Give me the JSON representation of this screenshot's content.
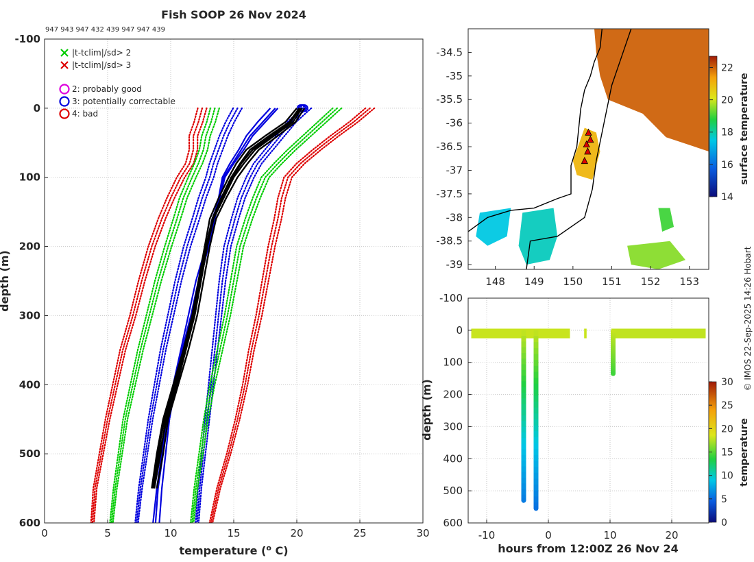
{
  "title": "Fish SOOP 26 Nov 2024",
  "subtitle": "947 943 947 432 439 947 947 439",
  "credit": "© IMOS 22-Sep-2025 14:26 Hobart",
  "colors": {
    "clim2": "#00cc00",
    "clim3": "#dd0000",
    "flag2": "#dd00dd",
    "flag3": "#0000dd",
    "flag4": "#dd0000",
    "profile": "#000000",
    "coast": "#000000"
  },
  "chart_data": [
    {
      "id": "profile",
      "type": "line",
      "xlabel": "temperature (",
      "xlabel_sup": "o",
      "xlabel_tail": " C)",
      "ylabel": "depth (m)",
      "xlim": [
        0,
        30
      ],
      "ylim": [
        -100,
        600
      ],
      "y_reversed": true,
      "xticks": [
        0,
        5,
        10,
        15,
        20,
        25,
        30
      ],
      "yticks": [
        -100,
        0,
        100,
        200,
        300,
        400,
        500,
        600
      ],
      "grid": true,
      "legend": {
        "position": "top-left",
        "entries": [
          {
            "marker": "x",
            "color": "#00cc00",
            "label": "|t-tclim|/sd> 2"
          },
          {
            "marker": "x",
            "color": "#dd0000",
            "label": "|t-tclim|/sd> 3"
          },
          {
            "marker": "o",
            "color": "#dd00dd",
            "label": "2: probably good"
          },
          {
            "marker": "o",
            "color": "#0000dd",
            "label": "3: potentially correctable"
          },
          {
            "marker": "o",
            "color": "#dd0000",
            "label": "4: bad"
          }
        ]
      },
      "depth": [
        0,
        20,
        40,
        60,
        80,
        100,
        130,
        160,
        200,
        250,
        300,
        350,
        400,
        450,
        500,
        550,
        600
      ],
      "climatology": [
        {
          "name": "mean-3sd",
          "color": "#dd0000",
          "style": "dotted",
          "values": [
            12.5,
            12.2,
            11.8,
            11.8,
            11.5,
            10.8,
            10.0,
            9.3,
            8.5,
            7.7,
            7.0,
            6.2,
            5.6,
            5.0,
            4.5,
            4.0,
            3.8
          ]
        },
        {
          "name": "mean-2sd",
          "color": "#00cc00",
          "style": "dotted",
          "values": [
            13.5,
            13.2,
            12.8,
            12.6,
            12.2,
            11.7,
            11.0,
            10.5,
            9.8,
            9.0,
            8.3,
            7.6,
            7.0,
            6.4,
            6.0,
            5.6,
            5.3
          ]
        },
        {
          "name": "mean-1sd",
          "color": "#0000dd",
          "style": "dotted",
          "values": [
            15.3,
            14.7,
            14.2,
            13.8,
            13.4,
            13.1,
            12.5,
            12.0,
            11.3,
            10.6,
            10.0,
            9.4,
            8.9,
            8.4,
            8.0,
            7.6,
            7.3
          ]
        },
        {
          "name": "mean+1sd",
          "color": "#0000dd",
          "style": "dotted",
          "values": [
            20.8,
            19.6,
            18.7,
            17.8,
            16.9,
            16.3,
            15.6,
            15.1,
            14.5,
            14.1,
            13.8,
            13.5,
            13.2,
            12.9,
            12.6,
            12.3,
            12.1
          ]
        },
        {
          "name": "mean+2sd",
          "color": "#00cc00",
          "style": "dotted",
          "values": [
            23.2,
            22.0,
            20.8,
            19.6,
            18.5,
            17.5,
            16.8,
            16.2,
            15.5,
            15.0,
            14.5,
            13.9,
            13.3,
            12.8,
            12.4,
            12.0,
            11.7
          ]
        },
        {
          "name": "mean+3sd",
          "color": "#dd0000",
          "style": "dotted",
          "values": [
            25.8,
            24.5,
            23.0,
            21.6,
            20.3,
            19.3,
            18.8,
            18.5,
            18.0,
            17.5,
            17.0,
            16.4,
            15.9,
            15.3,
            14.6,
            13.8,
            13.2
          ]
        }
      ],
      "flagged_profiles": {
        "color": "#0000dd",
        "depth": [
          0,
          20,
          40,
          60,
          80,
          100,
          130,
          160,
          200,
          250,
          300,
          350,
          400,
          450,
          500,
          550,
          600
        ],
        "values": [
          [
            18.5,
            17.5,
            16.5,
            15.8,
            15.0,
            14.3,
            13.9,
            13.5,
            13.0,
            12.3,
            11.7,
            11.0,
            10.4,
            9.9,
            9.6,
            9.3,
            9.1
          ],
          [
            17.9,
            16.9,
            16.0,
            15.4,
            14.7,
            14.1,
            13.8,
            13.4,
            12.9,
            12.2,
            11.6,
            10.9,
            10.3,
            9.8,
            9.4,
            9.0,
            8.8
          ],
          [
            18.3,
            17.3,
            16.3,
            15.6,
            14.9,
            14.2,
            13.9,
            13.3,
            12.8,
            12.0,
            11.4,
            10.8,
            10.2,
            9.7,
            9.3,
            8.9,
            8.6
          ]
        ],
        "surface_markers": [
          20.3,
          20.4,
          20.6,
          20.5
        ]
      },
      "good_profiles": {
        "color": "#000000",
        "depth": [
          0,
          20,
          40,
          60,
          80,
          100,
          130,
          160,
          200,
          250,
          300,
          350,
          400,
          450,
          500,
          550
        ],
        "values": [
          [
            20.4,
            19.7,
            18.2,
            16.7,
            15.8,
            15.0,
            14.2,
            13.4,
            12.9,
            12.4,
            11.9,
            11.2,
            10.4,
            9.6,
            9.2,
            8.7
          ],
          [
            20.2,
            19.4,
            17.8,
            16.3,
            15.5,
            14.8,
            14.0,
            13.3,
            12.8,
            12.3,
            11.8,
            11.1,
            10.3,
            9.5,
            9.0,
            8.6
          ],
          [
            20.6,
            19.9,
            18.5,
            17.0,
            16.1,
            15.3,
            14.4,
            13.6,
            13.1,
            12.6,
            12.1,
            11.4,
            10.6,
            9.8,
            9.4,
            8.9
          ],
          [
            20.0,
            19.1,
            17.5,
            16.0,
            15.2,
            14.6,
            13.8,
            13.1,
            12.7,
            12.2,
            11.7,
            11.0,
            10.2,
            9.4,
            8.9,
            8.5
          ],
          [
            20.3,
            19.5,
            18.0,
            16.5,
            15.6,
            14.9,
            14.1,
            13.4,
            12.9,
            12.4,
            11.9,
            11.2,
            10.5,
            9.7,
            9.1,
            8.7
          ]
        ]
      }
    },
    {
      "id": "map",
      "type": "heatmap",
      "xticks": [
        148,
        149,
        150,
        151,
        152,
        153
      ],
      "yticks": [
        -34.5,
        -35,
        -35.5,
        -36,
        -36.5,
        -37,
        -37.5,
        -38,
        -38.5,
        -39
      ],
      "xlim": [
        147.3,
        153.5
      ],
      "ylim": [
        -39.1,
        -34.0
      ],
      "colorbar": {
        "label": "surface temperature",
        "min": 14,
        "max": 22.7,
        "ticks": [
          14,
          16,
          18,
          20,
          22
        ]
      },
      "track_points": [
        [
          150.4,
          -36.2
        ],
        [
          150.35,
          -36.45
        ],
        [
          150.38,
          -36.6
        ],
        [
          150.3,
          -36.8
        ],
        [
          150.45,
          -36.35
        ]
      ],
      "sst_patches": [
        {
          "name": "offshore-warm",
          "value": 22,
          "pts": [
            [
              150.55,
              -34.0
            ],
            [
              153.5,
              -34.0
            ],
            [
              153.5,
              -36.6
            ],
            [
              152.4,
              -36.3
            ],
            [
              151.8,
              -35.8
            ],
            [
              150.9,
              -35.5
            ],
            [
              150.7,
              -35.0
            ],
            [
              150.6,
              -34.5
            ]
          ]
        },
        {
          "name": "coastal-band-warm",
          "value": 21,
          "pts": [
            [
              150.3,
              -36.1
            ],
            [
              150.6,
              -36.2
            ],
            [
              150.7,
              -36.6
            ],
            [
              150.5,
              -37.2
            ],
            [
              150.1,
              -37.1
            ],
            [
              150.0,
              -36.8
            ]
          ]
        },
        {
          "name": "bass-strait-west",
          "value": 17.5,
          "pts": [
            [
              147.6,
              -37.9
            ],
            [
              148.4,
              -37.8
            ],
            [
              148.3,
              -38.4
            ],
            [
              147.8,
              -38.6
            ],
            [
              147.5,
              -38.4
            ]
          ]
        },
        {
          "name": "bass-strait-central",
          "value": 17.8,
          "pts": [
            [
              148.7,
              -37.9
            ],
            [
              149.5,
              -37.8
            ],
            [
              149.6,
              -38.4
            ],
            [
              149.4,
              -38.9
            ],
            [
              148.8,
              -39.0
            ],
            [
              148.6,
              -38.6
            ]
          ]
        },
        {
          "name": "tasman-south",
          "value": 19.5,
          "pts": [
            [
              151.4,
              -38.6
            ],
            [
              152.5,
              -38.5
            ],
            [
              152.9,
              -38.9
            ],
            [
              152.2,
              -39.1
            ],
            [
              151.5,
              -39.0
            ]
          ]
        },
        {
          "name": "tasman-small",
          "value": 19.0,
          "pts": [
            [
              152.2,
              -37.8
            ],
            [
              152.5,
              -37.8
            ],
            [
              152.6,
              -38.2
            ],
            [
              152.3,
              -38.3
            ]
          ]
        }
      ],
      "coast": [
        [
          147.3,
          -38.3
        ],
        [
          147.8,
          -38.0
        ],
        [
          148.4,
          -37.85
        ],
        [
          149.0,
          -37.8
        ],
        [
          149.6,
          -37.6
        ],
        [
          149.95,
          -37.5
        ],
        [
          149.95,
          -36.9
        ],
        [
          150.1,
          -36.5
        ],
        [
          150.15,
          -36.1
        ],
        [
          150.2,
          -35.7
        ],
        [
          150.3,
          -35.3
        ],
        [
          150.45,
          -35.0
        ],
        [
          150.55,
          -34.7
        ],
        [
          150.7,
          -34.4
        ],
        [
          150.75,
          -34.0
        ]
      ],
      "shelf": [
        [
          148.8,
          -39.1
        ],
        [
          148.9,
          -38.5
        ],
        [
          149.6,
          -38.4
        ],
        [
          150.3,
          -38.0
        ],
        [
          150.5,
          -37.4
        ],
        [
          150.6,
          -36.8
        ],
        [
          150.8,
          -36.0
        ],
        [
          150.9,
          -35.6
        ],
        [
          151.0,
          -35.2
        ],
        [
          151.25,
          -34.6
        ],
        [
          151.5,
          -34.0
        ]
      ]
    },
    {
      "id": "section",
      "type": "heatmap",
      "xlabel": "hours from 12:00Z 26 Nov 24",
      "ylabel": "depth (m)",
      "xlim": [
        -13,
        26
      ],
      "ylim": [
        -100,
        600
      ],
      "y_reversed": true,
      "xticks": [
        -10,
        0,
        10,
        20
      ],
      "yticks": [
        -100,
        0,
        100,
        200,
        300,
        400,
        500,
        600
      ],
      "colorbar": {
        "label": "temperature",
        "min": 0,
        "max": 30,
        "ticks": [
          0,
          5,
          10,
          15,
          20,
          25,
          30
        ]
      },
      "surface_segments": [
        {
          "x0": -12.5,
          "x1": 3.5,
          "temp": 20.5
        },
        {
          "x0": 5.8,
          "x1": 6.2,
          "temp": 20.5
        },
        {
          "x0": 10.2,
          "x1": 25.5,
          "temp": 20.3
        }
      ],
      "casts": [
        {
          "x": -4.0,
          "max_depth": 530
        },
        {
          "x": -2.0,
          "max_depth": 555
        },
        {
          "x": 10.5,
          "max_depth": 135
        }
      ]
    }
  ]
}
